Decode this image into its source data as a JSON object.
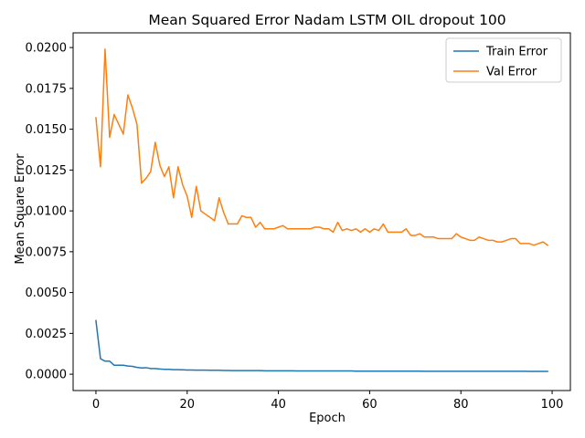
{
  "chart_data": {
    "type": "line",
    "title": "Mean Squared Error  Nadam LSTM OIL dropout 100",
    "xlabel": "Epoch",
    "ylabel": "Mean Square Error",
    "xlim": [
      -5,
      104
    ],
    "ylim": [
      -0.001,
      0.0209
    ],
    "xticks": [
      0,
      20,
      40,
      60,
      80,
      100
    ],
    "xtick_labels": [
      "0",
      "20",
      "40",
      "60",
      "80",
      "100"
    ],
    "yticks": [
      0.0,
      0.0025,
      0.005,
      0.0075,
      0.01,
      0.0125,
      0.015,
      0.0175,
      0.02
    ],
    "ytick_labels": [
      "0.0000",
      "0.0025",
      "0.0050",
      "0.0075",
      "0.0100",
      "0.0125",
      "0.0150",
      "0.0175",
      "0.0200"
    ],
    "grid": false,
    "legend_position": "top-right",
    "x": [
      0,
      1,
      2,
      3,
      4,
      5,
      6,
      7,
      8,
      9,
      10,
      11,
      12,
      13,
      14,
      15,
      16,
      17,
      18,
      19,
      20,
      21,
      22,
      23,
      24,
      25,
      26,
      27,
      28,
      29,
      30,
      31,
      32,
      33,
      34,
      35,
      36,
      37,
      38,
      39,
      40,
      41,
      42,
      43,
      44,
      45,
      46,
      47,
      48,
      49,
      50,
      51,
      52,
      53,
      54,
      55,
      56,
      57,
      58,
      59,
      60,
      61,
      62,
      63,
      64,
      65,
      66,
      67,
      68,
      69,
      70,
      71,
      72,
      73,
      74,
      75,
      76,
      77,
      78,
      79,
      80,
      81,
      82,
      83,
      84,
      85,
      86,
      87,
      88,
      89,
      90,
      91,
      92,
      93,
      94,
      95,
      96,
      97,
      98,
      99
    ],
    "series": [
      {
        "name": "Train Error",
        "color": "#1f77b4",
        "values": [
          0.00328,
          0.00095,
          0.0008,
          0.0008,
          0.00055,
          0.00055,
          0.00055,
          0.0005,
          0.00048,
          0.00042,
          0.00038,
          0.0004,
          0.00035,
          0.00035,
          0.00032,
          0.0003,
          0.0003,
          0.00028,
          0.00028,
          0.00027,
          0.00026,
          0.00026,
          0.00025,
          0.00025,
          0.00025,
          0.00024,
          0.00024,
          0.00024,
          0.00023,
          0.00023,
          0.00022,
          0.00022,
          0.00022,
          0.00022,
          0.00022,
          0.00022,
          0.00022,
          0.00021,
          0.00021,
          0.00021,
          0.00021,
          0.00021,
          0.00021,
          0.00021,
          0.0002,
          0.0002,
          0.0002,
          0.0002,
          0.0002,
          0.0002,
          0.0002,
          0.0002,
          0.0002,
          0.0002,
          0.0002,
          0.0002,
          0.0002,
          0.00019,
          0.00019,
          0.00019,
          0.00019,
          0.00019,
          0.00019,
          0.00019,
          0.00019,
          0.00019,
          0.00019,
          0.00019,
          0.00019,
          0.00019,
          0.00019,
          0.00019,
          0.00018,
          0.00018,
          0.00018,
          0.00018,
          0.00018,
          0.00018,
          0.00018,
          0.00018,
          0.00018,
          0.00018,
          0.00018,
          0.00018,
          0.00018,
          0.00018,
          0.00018,
          0.00018,
          0.00018,
          0.00018,
          0.00018,
          0.00018,
          0.00018,
          0.00018,
          0.00018,
          0.00017,
          0.00017,
          0.00017,
          0.00017,
          0.00017
        ]
      },
      {
        "name": "Val Error",
        "color": "#ff7f0e",
        "values": [
          0.0157,
          0.0127,
          0.0199,
          0.0145,
          0.0159,
          0.0153,
          0.0147,
          0.0171,
          0.0163,
          0.0153,
          0.0117,
          0.012,
          0.0124,
          0.0142,
          0.0128,
          0.0121,
          0.0127,
          0.0108,
          0.0127,
          0.0116,
          0.0109,
          0.0096,
          0.0115,
          0.01,
          0.0098,
          0.0096,
          0.0094,
          0.0108,
          0.0099,
          0.0092,
          0.0092,
          0.0092,
          0.0097,
          0.0096,
          0.0096,
          0.009,
          0.0093,
          0.0089,
          0.0089,
          0.0089,
          0.009,
          0.0091,
          0.0089,
          0.0089,
          0.0089,
          0.0089,
          0.0089,
          0.0089,
          0.009,
          0.009,
          0.0089,
          0.0089,
          0.0087,
          0.0093,
          0.0088,
          0.0089,
          0.0088,
          0.0089,
          0.0087,
          0.0089,
          0.0087,
          0.0089,
          0.0088,
          0.0092,
          0.0087,
          0.0087,
          0.0087,
          0.0087,
          0.0089,
          0.0085,
          0.0085,
          0.0086,
          0.0084,
          0.0084,
          0.0084,
          0.0083,
          0.0083,
          0.0083,
          0.0083,
          0.0086,
          0.0084,
          0.0083,
          0.0082,
          0.0082,
          0.0084,
          0.0083,
          0.0082,
          0.0082,
          0.0081,
          0.0081,
          0.0082,
          0.0083,
          0.0083,
          0.008,
          0.008,
          0.008,
          0.0079,
          0.008,
          0.0081,
          0.0079
        ]
      }
    ]
  }
}
